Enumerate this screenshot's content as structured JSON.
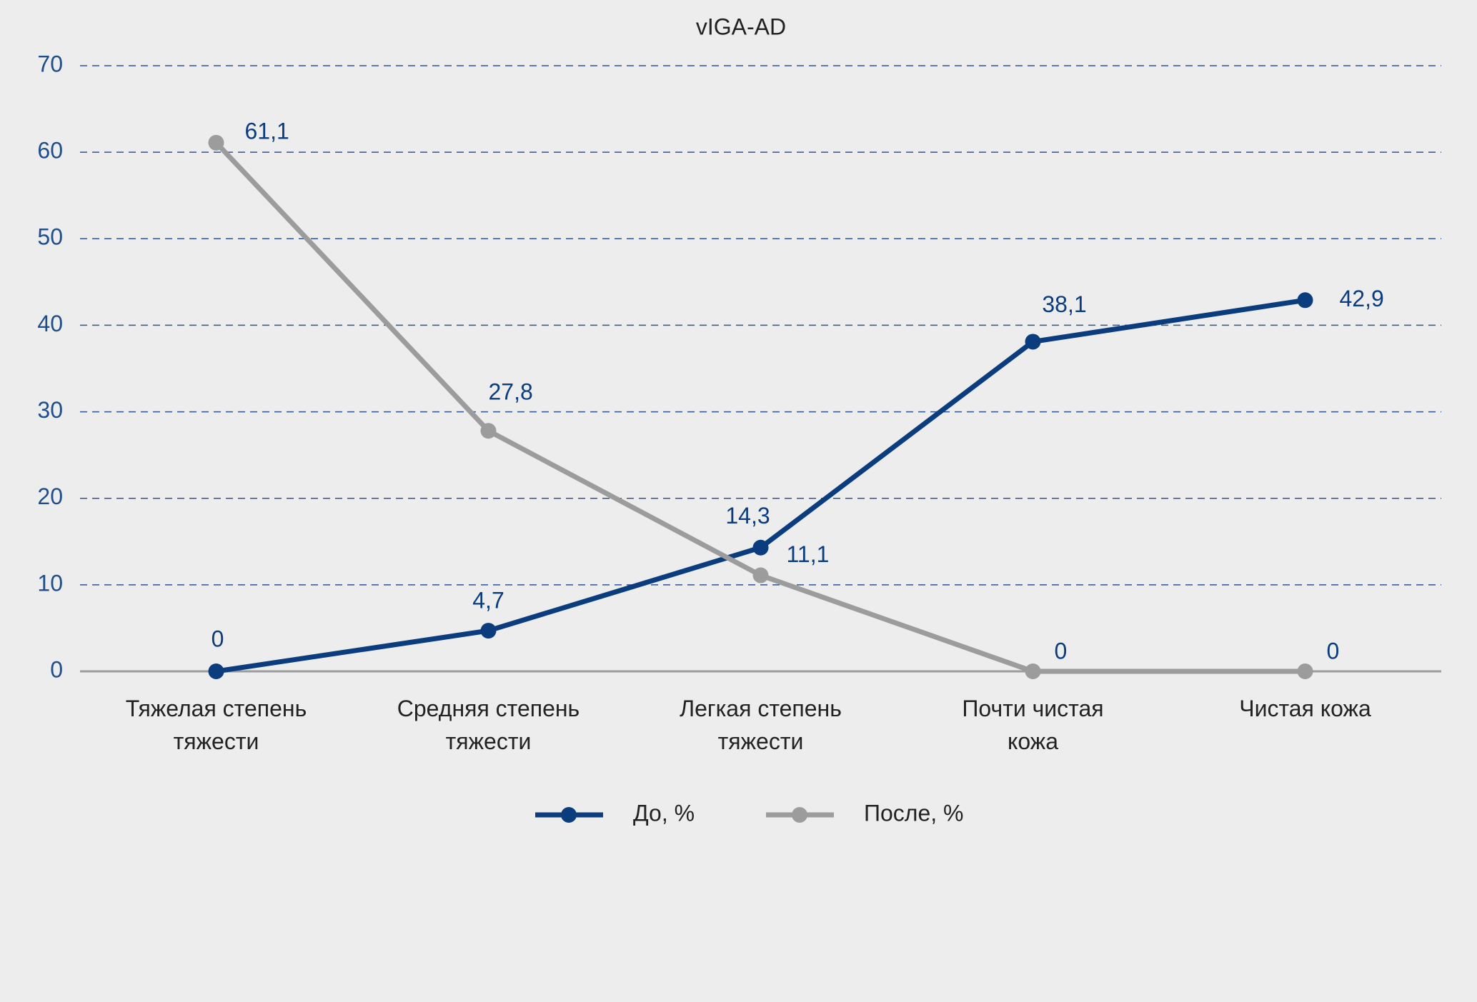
{
  "chart_data": {
    "type": "line",
    "title": "vIGA-AD",
    "categories": [
      "Тяжелая степень\nтяжести",
      "Средняя степень\nтяжести",
      "Легкая степень\nтяжести",
      "Почти чистая\nкожа",
      "Чистая кожа"
    ],
    "series": [
      {
        "name": "До, %",
        "color": "#0b3d7e",
        "values": [
          0,
          4.7,
          14.3,
          38.1,
          42.9
        ],
        "value_labels": [
          "0",
          "4,7",
          "14,3",
          "38,1",
          "42,9"
        ]
      },
      {
        "name": "После, %",
        "color": "#9c9c9c",
        "values": [
          61.1,
          27.8,
          11.1,
          0,
          0
        ],
        "value_labels": [
          "61,1",
          "27,8",
          "11,1",
          "0",
          "0"
        ]
      }
    ],
    "ylim": [
      0,
      70
    ],
    "yticks": [
      0,
      10,
      20,
      30,
      40,
      50,
      60,
      70
    ],
    "grid": true,
    "legend": "bottom"
  }
}
